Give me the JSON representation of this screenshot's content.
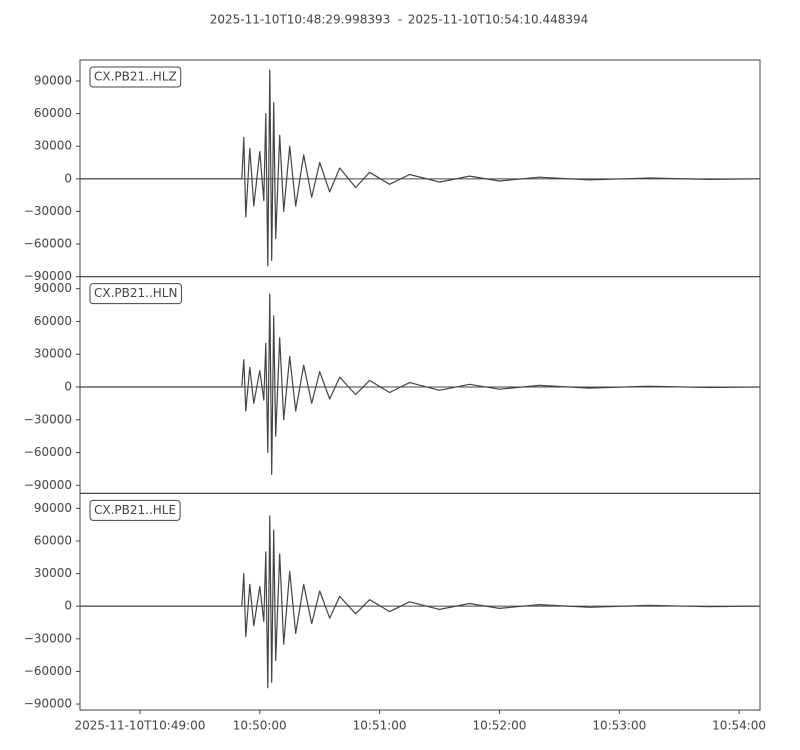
{
  "chart_data": {
    "type": "line",
    "title_start": "2025-11-10T10:48:29.998393",
    "title_separator": "-",
    "title_end": "2025-11-10T10:54:10.448394",
    "xlim": [
      "10:48:29.998393",
      "10:54:10.448394"
    ],
    "xticks": [
      {
        "value": "10:49:00",
        "label": "2025-11-10T10:49:00"
      },
      "10:50:00",
      "10:51:00",
      "10:52:00",
      "10:53:00",
      "10:54:00"
    ],
    "yticks": [
      {
        "value": 90000,
        "label": "90000"
      },
      60000,
      30000,
      0,
      {
        "value": -30000,
        "label": "−30000"
      },
      {
        "value": -60000,
        "label": "−60000"
      },
      {
        "value": -90000,
        "label": "−90000"
      }
    ],
    "x": [
      "10:48:30",
      "10:49:51",
      "10:49:52",
      "10:49:53",
      "10:49:55",
      "10:49:57",
      "10:50:00",
      "10:50:02",
      "10:50:03",
      "10:50:04",
      "10:50:05",
      "10:50:06",
      "10:50:07",
      "10:50:08",
      "10:50:10",
      "10:50:12",
      "10:50:15",
      "10:50:18",
      "10:50:22",
      "10:50:26",
      "10:50:30",
      "10:50:35",
      "10:50:40",
      "10:50:48",
      "10:50:55",
      "10:51:05",
      "10:51:15",
      "10:51:30",
      "10:51:45",
      "10:52:00",
      "10:52:20",
      "10:52:45",
      "10:53:15",
      "10:53:45",
      "10:54:10"
    ],
    "panels": [
      {
        "label": "CX.PB21..HLZ",
        "color": "#444444",
        "ylim": [
          -90000,
          109300
        ],
        "values": [
          0,
          0,
          38000,
          -35000,
          28000,
          -25000,
          25000,
          -20000,
          60000,
          -80000,
          100000,
          -75000,
          70000,
          -55000,
          40000,
          -30000,
          30000,
          -25000,
          22000,
          -17000,
          15000,
          -12000,
          10000,
          -8000,
          6000,
          -5000,
          4000,
          -3000,
          2500,
          -2000,
          1500,
          -1000,
          800,
          -500,
          0
        ]
      },
      {
        "label": "CX.PB21..HLN",
        "color": "#444444",
        "ylim": [
          -97350,
          101000
        ],
        "values": [
          0,
          0,
          25000,
          -22000,
          18000,
          -15000,
          15000,
          -12000,
          40000,
          -60000,
          85000,
          -80000,
          65000,
          -45000,
          45000,
          -30000,
          28000,
          -22000,
          20000,
          -15000,
          14000,
          -11000,
          9000,
          -7000,
          6000,
          -5000,
          4000,
          -3000,
          2500,
          -2000,
          1500,
          -1000,
          700,
          -500,
          0
        ]
      },
      {
        "label": "CX.PB21..HLE",
        "color": "#444444",
        "ylim": [
          -95500,
          103800
        ],
        "values": [
          0,
          0,
          30000,
          -28000,
          20000,
          -18000,
          18000,
          -14000,
          50000,
          -75000,
          83000,
          -70000,
          70000,
          -50000,
          48000,
          -35000,
          32000,
          -25000,
          20000,
          -16000,
          14000,
          -11000,
          9000,
          -7000,
          6000,
          -5000,
          4000,
          -3000,
          2500,
          -2000,
          1500,
          -1000,
          800,
          -500,
          0
        ]
      }
    ]
  }
}
